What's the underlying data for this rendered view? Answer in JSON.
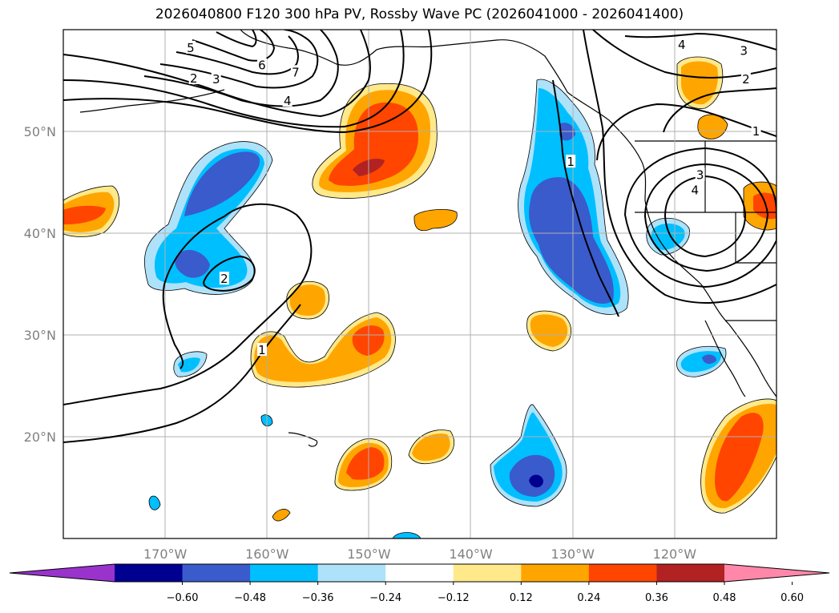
{
  "title": "2026040800 F120 300 hPa PV, Rossby Wave PC (2026041000 - 2026041400)",
  "map": {
    "lon_range": [
      -180,
      -110
    ],
    "lat_range": [
      10,
      60
    ],
    "lon_ticks": [
      {
        "lon": -170,
        "label": "170°W"
      },
      {
        "lon": -160,
        "label": "160°W"
      },
      {
        "lon": -150,
        "label": "150°W"
      },
      {
        "lon": -140,
        "label": "140°W"
      },
      {
        "lon": -130,
        "label": "130°W"
      },
      {
        "lon": -120,
        "label": "120°W"
      }
    ],
    "lat_ticks": [
      {
        "lat": 20,
        "label": "20°N"
      },
      {
        "lat": 30,
        "label": "30°N"
      },
      {
        "lat": 40,
        "label": "40°N"
      },
      {
        "lat": 50,
        "label": "50°N"
      }
    ],
    "grid": true
  },
  "colorbar": {
    "colors": [
      "#9933cc",
      "#000090",
      "#3a5bcc",
      "#00bfff",
      "#aee2fa",
      "#ffffff",
      "#ffe98a",
      "#ffa500",
      "#ff4500",
      "#b22222",
      "#ff88aa"
    ],
    "ticks": [
      "−0.60",
      "−0.48",
      "−0.36",
      "−0.24",
      "−0.12",
      "0.12",
      "0.24",
      "0.36",
      "0.48",
      "0.60"
    ]
  },
  "contour_labels": [
    {
      "text": "5",
      "lon": -167.5,
      "lat": 58.2
    },
    {
      "text": "6",
      "lon": -160.5,
      "lat": 56.5
    },
    {
      "text": "7",
      "lon": -157.2,
      "lat": 55.8
    },
    {
      "text": "2",
      "lon": -167.2,
      "lat": 55.2
    },
    {
      "text": "3",
      "lon": -165.0,
      "lat": 55.1
    },
    {
      "text": "4",
      "lon": -158.0,
      "lat": 53.0
    },
    {
      "text": "2",
      "lon": -164.2,
      "lat": 35.5
    },
    {
      "text": "1",
      "lon": -160.5,
      "lat": 28.5
    },
    {
      "text": "1",
      "lon": -130.2,
      "lat": 47.0
    },
    {
      "text": "4",
      "lon": -119.3,
      "lat": 58.5
    },
    {
      "text": "3",
      "lon": -113.2,
      "lat": 57.9
    },
    {
      "text": "2",
      "lon": -113.0,
      "lat": 55.1
    },
    {
      "text": "1",
      "lon": -112.0,
      "lat": 50.0
    },
    {
      "text": "3",
      "lon": -117.5,
      "lat": 45.7
    },
    {
      "text": "4",
      "lon": -118.0,
      "lat": 44.2
    }
  ]
}
